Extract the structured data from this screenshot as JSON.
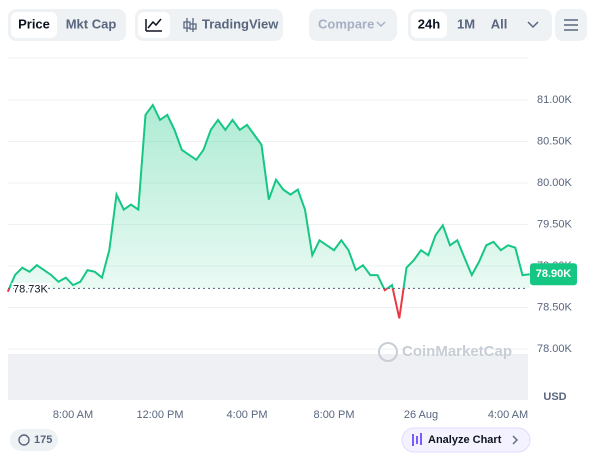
{
  "toolbar": {
    "tabs": [
      "Price",
      "Mkt Cap"
    ],
    "tradingview": "TradingView",
    "compare": "Compare",
    "ranges": [
      "24h",
      "1M",
      "All"
    ]
  },
  "chart_data": {
    "type": "line",
    "categories": [
      null,
      null,
      null,
      null,
      null,
      null,
      null,
      null,
      null,
      "8:00 AM",
      null,
      null,
      null,
      null,
      null,
      null,
      null,
      null,
      null,
      null,
      null,
      "12:00 PM",
      null,
      null,
      null,
      null,
      null,
      null,
      null,
      null,
      null,
      null,
      null,
      "4:00 PM",
      null,
      null,
      null,
      null,
      null,
      null,
      null,
      null,
      null,
      null,
      null,
      "8:00 PM",
      null,
      null,
      null,
      null,
      null,
      null,
      null,
      null,
      null,
      null,
      null,
      "26 Aug",
      null,
      null,
      null,
      null,
      null,
      null,
      null,
      null,
      null,
      null,
      null,
      "4:00 AM",
      null,
      null,
      null
    ],
    "values": [
      78690,
      78890,
      78980,
      78930,
      79010,
      78950,
      78890,
      78810,
      78860,
      78770,
      78810,
      78950,
      78930,
      78860,
      79190,
      79860,
      79680,
      79740,
      79680,
      80820,
      80940,
      80760,
      80820,
      80640,
      80400,
      80340,
      80280,
      80400,
      80640,
      80760,
      80640,
      80760,
      80640,
      80700,
      80580,
      80460,
      79800,
      80040,
      79920,
      79860,
      79920,
      79680,
      79130,
      79310,
      79250,
      79190,
      79310,
      79190,
      78950,
      79010,
      78890,
      78890,
      78710,
      78770,
      78370,
      78980,
      79070,
      79190,
      79130,
      79370,
      79490,
      79250,
      79310,
      79100,
      78890,
      79050,
      79250,
      79290,
      79190,
      79250,
      79220,
      78890,
      78900
    ],
    "color": "#16c784",
    "down_color": "#ea3943",
    "ylim": [
      77500,
      81500
    ],
    "yticks": [
      {
        "value": 78000,
        "label": "78.00K"
      },
      {
        "value": 78500,
        "label": "78.50K"
      },
      {
        "value": 79000,
        "label": "79.00K"
      },
      {
        "value": 79500,
        "label": "79.50K"
      },
      {
        "value": 80000,
        "label": "80.00K"
      },
      {
        "value": 80500,
        "label": "80.50K"
      },
      {
        "value": 81000,
        "label": "81.00K"
      }
    ],
    "grid": true,
    "reference": {
      "value": 78730,
      "label": "78.73K"
    },
    "current_price": {
      "value": 78900,
      "label": "78.90K"
    },
    "currency": "USD",
    "watermark": "CoinMarketCap"
  },
  "footer": {
    "badge": "175",
    "analyze": "Analyze Chart"
  }
}
